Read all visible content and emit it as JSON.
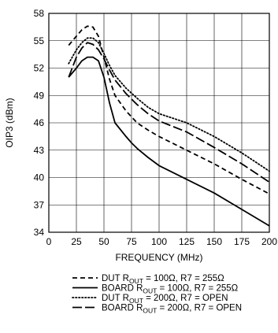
{
  "chart_data": {
    "type": "line",
    "xlabel": "FREQUENCY (MHz)",
    "ylabel": "OIP3 (dBm)",
    "xlim": [
      0,
      200
    ],
    "ylim": [
      34,
      58
    ],
    "xticks": [
      0,
      25,
      50,
      75,
      100,
      125,
      150,
      175,
      200
    ],
    "yticks": [
      34,
      37,
      40,
      43,
      46,
      49,
      52,
      55,
      58
    ],
    "xtick_labels": [
      "0",
      "25",
      "50",
      "75",
      "100",
      "125",
      "150",
      "175",
      "200"
    ],
    "ytick_labels": [
      "34",
      "37",
      "40",
      "43",
      "46",
      "49",
      "52",
      "55",
      "58"
    ],
    "grid": true,
    "legend_position": "bottom",
    "series": [
      {
        "legend_prefix": "DUT R",
        "legend_sub": "OUT",
        "legend_suffix": " = 100Ω, R7 = 255Ω",
        "style": "dashed",
        "x": [
          18,
          25,
          30,
          35,
          40,
          45,
          50,
          55,
          60,
          70,
          80,
          90,
          100,
          125,
          150,
          175,
          200
        ],
        "y": [
          54.5,
          55.5,
          56.2,
          56.6,
          56.5,
          55.5,
          53.2,
          50.8,
          49.0,
          47.3,
          46.0,
          45.2,
          44.5,
          43.0,
          41.5,
          39.8,
          38.2
        ]
      },
      {
        "legend_prefix": "BOARD R",
        "legend_sub": "OUT",
        "legend_suffix": " = 100Ω, R7 = 255Ω",
        "style": "solid",
        "x": [
          18,
          25,
          30,
          35,
          40,
          45,
          50,
          55,
          60,
          70,
          75,
          80,
          90,
          100,
          125,
          150,
          175,
          200
        ],
        "y": [
          51.0,
          52.0,
          52.8,
          53.2,
          53.2,
          52.8,
          51.0,
          48.2,
          46.0,
          44.5,
          43.8,
          43.2,
          42.2,
          41.3,
          39.8,
          38.3,
          36.5,
          34.7
        ]
      },
      {
        "legend_prefix": "DUT R",
        "legend_sub": "OUT",
        "legend_suffix": " = 200Ω, R7 = OPEN",
        "style": "dotted",
        "x": [
          18,
          25,
          30,
          35,
          40,
          45,
          50,
          55,
          60,
          70,
          80,
          90,
          100,
          125,
          150,
          175,
          200
        ],
        "y": [
          52.5,
          54.0,
          54.8,
          55.3,
          55.3,
          54.8,
          53.6,
          52.3,
          51.2,
          49.8,
          48.7,
          47.7,
          47.0,
          46.0,
          44.5,
          42.7,
          40.7
        ]
      },
      {
        "legend_prefix": "BOARD R",
        "legend_sub": "OUT",
        "legend_suffix": " = 200Ω, R7 = OPEN",
        "style": "longdash",
        "x": [
          18,
          25,
          30,
          35,
          40,
          45,
          50,
          55,
          60,
          70,
          80,
          90,
          100,
          125,
          150,
          175,
          200
        ],
        "y": [
          51.0,
          53.2,
          54.2,
          54.8,
          54.6,
          54.0,
          53.0,
          51.8,
          50.7,
          49.2,
          48.0,
          47.0,
          46.2,
          45.0,
          43.3,
          41.5,
          39.5
        ]
      }
    ]
  }
}
